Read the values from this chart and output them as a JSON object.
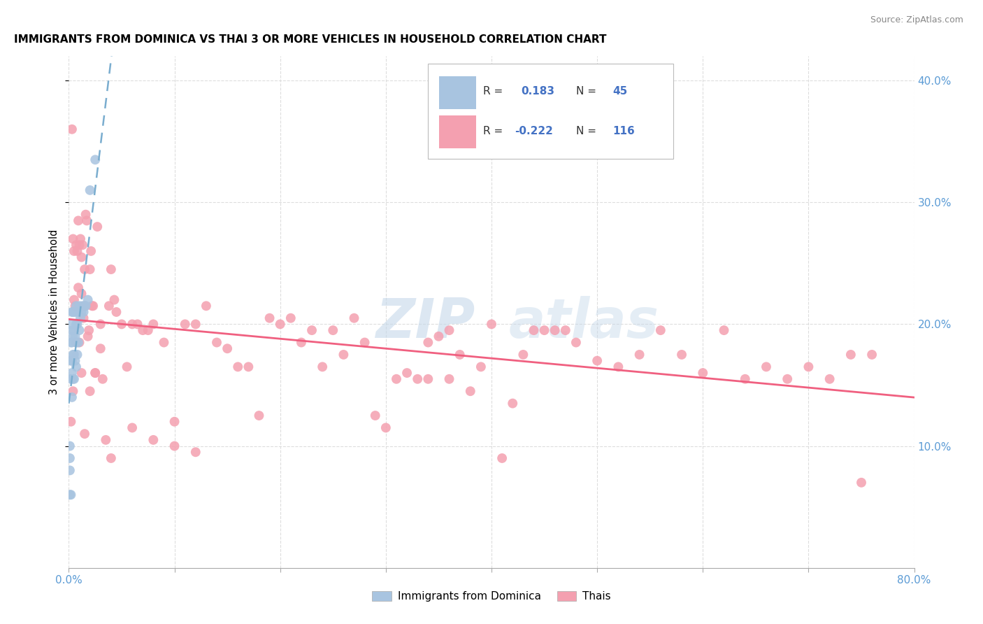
{
  "title": "IMMIGRANTS FROM DOMINICA VS THAI 3 OR MORE VEHICLES IN HOUSEHOLD CORRELATION CHART",
  "source": "Source: ZipAtlas.com",
  "ylabel": "3 or more Vehicles in Household",
  "xlim": [
    0.0,
    0.8
  ],
  "ylim": [
    0.0,
    0.42
  ],
  "color_dominica": "#a8c4e0",
  "color_thai": "#f4a0b0",
  "color_dominica_line": "#7aadcf",
  "color_thai_line": "#f06080",
  "watermark_zip": "ZIP",
  "watermark_atlas": "atlas",
  "legend_labels": [
    "Immigrants from Dominica",
    "Thais"
  ],
  "dominica_x": [
    0.001,
    0.001,
    0.001,
    0.001,
    0.002,
    0.002,
    0.002,
    0.002,
    0.002,
    0.003,
    0.003,
    0.003,
    0.003,
    0.003,
    0.003,
    0.004,
    0.004,
    0.004,
    0.004,
    0.005,
    0.005,
    0.005,
    0.005,
    0.006,
    0.006,
    0.006,
    0.007,
    0.007,
    0.007,
    0.007,
    0.008,
    0.008,
    0.009,
    0.009,
    0.01,
    0.01,
    0.011,
    0.012,
    0.013,
    0.014,
    0.015,
    0.016,
    0.018,
    0.02,
    0.025
  ],
  "dominica_y": [
    0.06,
    0.08,
    0.09,
    0.1,
    0.06,
    0.155,
    0.17,
    0.185,
    0.2,
    0.14,
    0.16,
    0.17,
    0.185,
    0.195,
    0.21,
    0.155,
    0.175,
    0.19,
    0.21,
    0.155,
    0.175,
    0.195,
    0.21,
    0.17,
    0.19,
    0.21,
    0.165,
    0.185,
    0.2,
    0.215,
    0.175,
    0.2,
    0.185,
    0.21,
    0.195,
    0.215,
    0.205,
    0.21,
    0.215,
    0.21,
    0.215,
    0.215,
    0.22,
    0.31,
    0.335
  ],
  "thai_x": [
    0.002,
    0.003,
    0.004,
    0.004,
    0.005,
    0.005,
    0.006,
    0.007,
    0.007,
    0.008,
    0.009,
    0.009,
    0.01,
    0.01,
    0.011,
    0.012,
    0.012,
    0.013,
    0.014,
    0.015,
    0.015,
    0.016,
    0.017,
    0.018,
    0.019,
    0.02,
    0.021,
    0.022,
    0.023,
    0.025,
    0.027,
    0.03,
    0.032,
    0.035,
    0.038,
    0.04,
    0.043,
    0.045,
    0.05,
    0.055,
    0.06,
    0.065,
    0.07,
    0.075,
    0.08,
    0.09,
    0.1,
    0.11,
    0.12,
    0.13,
    0.14,
    0.15,
    0.16,
    0.17,
    0.18,
    0.19,
    0.2,
    0.21,
    0.22,
    0.23,
    0.24,
    0.25,
    0.26,
    0.27,
    0.28,
    0.29,
    0.3,
    0.31,
    0.32,
    0.33,
    0.34,
    0.35,
    0.36,
    0.37,
    0.38,
    0.39,
    0.4,
    0.41,
    0.42,
    0.43,
    0.44,
    0.45,
    0.46,
    0.47,
    0.48,
    0.5,
    0.52,
    0.54,
    0.56,
    0.58,
    0.6,
    0.62,
    0.64,
    0.66,
    0.68,
    0.7,
    0.72,
    0.74,
    0.75,
    0.76,
    0.34,
    0.36,
    0.04,
    0.06,
    0.08,
    0.1,
    0.12,
    0.025,
    0.03,
    0.02,
    0.015,
    0.012
  ],
  "thai_y": [
    0.12,
    0.36,
    0.27,
    0.145,
    0.26,
    0.22,
    0.215,
    0.185,
    0.265,
    0.26,
    0.23,
    0.285,
    0.265,
    0.185,
    0.27,
    0.255,
    0.225,
    0.265,
    0.205,
    0.245,
    0.215,
    0.29,
    0.285,
    0.19,
    0.195,
    0.245,
    0.26,
    0.215,
    0.215,
    0.16,
    0.28,
    0.2,
    0.155,
    0.105,
    0.215,
    0.245,
    0.22,
    0.21,
    0.2,
    0.165,
    0.2,
    0.2,
    0.195,
    0.195,
    0.2,
    0.185,
    0.12,
    0.2,
    0.2,
    0.215,
    0.185,
    0.18,
    0.165,
    0.165,
    0.125,
    0.205,
    0.2,
    0.205,
    0.185,
    0.195,
    0.165,
    0.195,
    0.175,
    0.205,
    0.185,
    0.125,
    0.115,
    0.155,
    0.16,
    0.155,
    0.185,
    0.19,
    0.195,
    0.175,
    0.145,
    0.165,
    0.2,
    0.09,
    0.135,
    0.175,
    0.195,
    0.195,
    0.195,
    0.195,
    0.185,
    0.17,
    0.165,
    0.175,
    0.195,
    0.175,
    0.16,
    0.195,
    0.155,
    0.165,
    0.155,
    0.165,
    0.155,
    0.175,
    0.07,
    0.175,
    0.155,
    0.155,
    0.09,
    0.115,
    0.105,
    0.1,
    0.095,
    0.16,
    0.18,
    0.145,
    0.11,
    0.16
  ]
}
